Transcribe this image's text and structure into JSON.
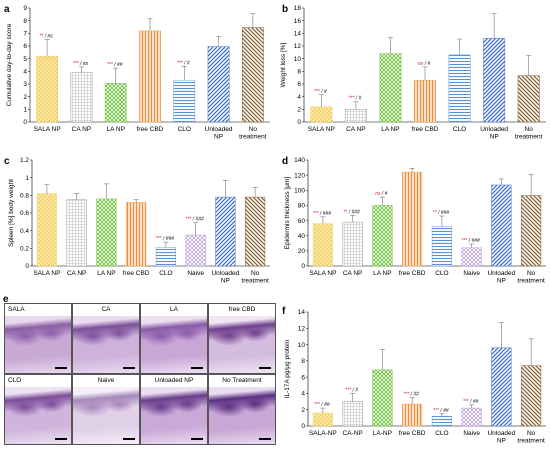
{
  "colors": {
    "sala": "#f3d36a",
    "ca": "#9a9a9a",
    "la": "#7cc24a",
    "cbd": "#f2a55e",
    "clo": "#6f9ad6",
    "naive": "#b59ad6",
    "unloaded": "#4a72b8",
    "notreat": "#8b5a2b",
    "sig_red": "#d62728",
    "sig_black": "#000000"
  },
  "chart_data": [
    {
      "panel": "a",
      "type": "bar",
      "ylabel": "Cumulative day-to-day score",
      "ylim": [
        0,
        9
      ],
      "yticks": [
        "0",
        "1",
        "2",
        "3",
        "4",
        "5",
        "6",
        "7",
        "8",
        "9"
      ],
      "categories": [
        "SALA NP",
        "CA NP",
        "LA NP",
        "free CBD",
        "CLO",
        "Unloaded NP",
        "No treatment"
      ],
      "cat_lines": [
        [
          "SALA NP"
        ],
        [
          "CA NP"
        ],
        [
          "LA NP"
        ],
        [
          "free CBD"
        ],
        [
          "CLO"
        ],
        [
          "Unloaded",
          "NP"
        ],
        [
          "No",
          "treatment"
        ]
      ],
      "values": [
        5.2,
        3.9,
        3.05,
        7.2,
        3.3,
        5.95,
        7.45
      ],
      "errors": [
        1.3,
        0.45,
        1.2,
        0.95,
        1.1,
        0.8,
        1.1
      ],
      "fills": [
        "sala",
        "ca",
        "la",
        "cbd",
        "clo",
        "unloaded",
        "notreat"
      ],
      "sig_red": [
        "**",
        "***",
        "***",
        "",
        "***",
        "",
        ""
      ],
      "sig_black": [
        "/ ns",
        "/ ns",
        "/ ##",
        "",
        "/ #",
        "",
        ""
      ]
    },
    {
      "panel": "b",
      "type": "bar",
      "ylabel": "Weight loss [%]",
      "ylim": [
        0,
        18
      ],
      "yticks": [
        "0",
        "2",
        "4",
        "6",
        "8",
        "10",
        "12",
        "14",
        "16",
        "18"
      ],
      "categories": [
        "SALA NP",
        "CA NP",
        "LA NP",
        "free CBD",
        "CLO",
        "Unloaded NP",
        "No treatment"
      ],
      "cat_lines": [
        [
          "SALA NP"
        ],
        [
          "CA NP"
        ],
        [
          "LA NP"
        ],
        [
          "free CBD"
        ],
        [
          "CLO"
        ],
        [
          "Unloaded",
          "NP"
        ],
        [
          "No",
          "treatment"
        ]
      ],
      "values": [
        2.4,
        2.0,
        10.8,
        6.6,
        10.6,
        13.2,
        7.3
      ],
      "errors": [
        1.9,
        1.2,
        2.5,
        2.1,
        2.5,
        3.9,
        3.2
      ],
      "fills": [
        "sala",
        "ca",
        "la",
        "cbd",
        "clo",
        "unloaded",
        "notreat"
      ],
      "sig_red": [
        "***",
        "***",
        "",
        "ns",
        "",
        "",
        ""
      ],
      "sig_black": [
        "/ #",
        "/ #",
        "",
        "/ #",
        "",
        "",
        ""
      ]
    },
    {
      "panel": "c",
      "type": "bar",
      "ylabel": "Spleen [%] body weight",
      "ylim": [
        0,
        1.2
      ],
      "yticks": [
        "0",
        "0.2",
        "0.4",
        "0.6",
        "0.8",
        "1",
        "1.2"
      ],
      "categories": [
        "SALA NP",
        "CA NP",
        "LA NP",
        "free CBD",
        "CLO",
        "Naive",
        "Unloaded NP",
        "No treatment"
      ],
      "cat_lines": [
        [
          "SALA NP"
        ],
        [
          "CA NP"
        ],
        [
          "LA NP"
        ],
        [
          "free CBD"
        ],
        [
          "CLO"
        ],
        [
          "Naive"
        ],
        [
          "Unloaded",
          "NP"
        ],
        [
          "No",
          "treatment"
        ]
      ],
      "values": [
        0.82,
        0.75,
        0.76,
        0.72,
        0.21,
        0.35,
        0.78,
        0.78
      ],
      "errors": [
        0.1,
        0.07,
        0.17,
        0.03,
        0.06,
        0.14,
        0.19,
        0.11
      ],
      "fills": [
        "sala",
        "ca",
        "la",
        "cbd",
        "clo",
        "naive",
        "unloaded",
        "notreat"
      ],
      "sig_red": [
        "",
        "",
        "",
        "",
        "***",
        "***",
        "",
        ""
      ],
      "sig_black": [
        "",
        "",
        "",
        "",
        "/ ###",
        "/ ###",
        "",
        ""
      ]
    },
    {
      "panel": "d",
      "type": "bar",
      "ylabel": "Epidermis thickness [μm]",
      "ylim": [
        0,
        140
      ],
      "yticks": [
        "0",
        "20",
        "40",
        "60",
        "80",
        "100",
        "120",
        "140"
      ],
      "categories": [
        "SALA NP",
        "CA NP",
        "LA NP",
        "free CBD",
        "CLO",
        "Naive",
        "Unloaded NP",
        "No treatment"
      ],
      "cat_lines": [
        [
          "SALA NP"
        ],
        [
          "CA NP"
        ],
        [
          "LA NP"
        ],
        [
          "free CBD"
        ],
        [
          "CLO"
        ],
        [
          "Naive"
        ],
        [
          "Unloaded",
          "NP"
        ],
        [
          "No",
          "treatment"
        ]
      ],
      "values": [
        56,
        58,
        80,
        124,
        52,
        24,
        107,
        93
      ],
      "errors": [
        9,
        9,
        11,
        5,
        14,
        5,
        8,
        28
      ],
      "fills": [
        "sala",
        "ca",
        "la",
        "cbd",
        "clo",
        "naive",
        "unloaded",
        "notreat"
      ],
      "sig_red": [
        "***",
        "**",
        "ns",
        "",
        "**",
        "***",
        "",
        ""
      ],
      "sig_black": [
        "/ ###",
        "/ ###",
        "/ #",
        "",
        "/ ###",
        "/ ###",
        "",
        ""
      ]
    },
    {
      "panel": "f",
      "type": "bar",
      "ylabel": "IL-17A pg/μg protein",
      "ylim": [
        0,
        14
      ],
      "yticks": [
        "0",
        "2",
        "4",
        "6",
        "8",
        "10",
        "12",
        "14"
      ],
      "categories": [
        "SALA-NP",
        "CA-NP",
        "LA-NP",
        "free CBD",
        "CLO",
        "Naive",
        "Unloaded NP",
        "No treatment"
      ],
      "cat_lines": [
        [
          "SALA-NP"
        ],
        [
          "CA-NP"
        ],
        [
          "LA-NP"
        ],
        [
          "free CBD"
        ],
        [
          "CLO"
        ],
        [
          "Naive"
        ],
        [
          "Unloaded",
          "NP"
        ],
        [
          "No",
          "treatment"
        ]
      ],
      "values": [
        1.6,
        3.0,
        6.9,
        2.7,
        1.2,
        2.2,
        9.6,
        7.4
      ],
      "errors": [
        0.6,
        1.0,
        2.5,
        0.8,
        0.3,
        0.4,
        3.1,
        3.3
      ],
      "fills": [
        "sala",
        "ca",
        "la",
        "cbd",
        "clo",
        "naive",
        "unloaded",
        "notreat"
      ],
      "sig_red": [
        "***",
        "***",
        "",
        "***",
        "***",
        "***",
        "",
        ""
      ],
      "sig_black": [
        "/ ##",
        "/ #",
        "",
        "/ ##",
        "/ ##",
        "/ ##",
        "",
        ""
      ]
    }
  ],
  "histology": {
    "panel": "e",
    "cells": [
      {
        "label": "SALA",
        "align": "left"
      },
      {
        "label": "CA",
        "align": "center"
      },
      {
        "label": "LA",
        "align": "center"
      },
      {
        "label": "free CBD",
        "align": "center"
      },
      {
        "label": "CLO",
        "align": "left"
      },
      {
        "label": "Naive",
        "align": "center"
      },
      {
        "label": "Unloaded NP",
        "align": "center"
      },
      {
        "label": "No Treatment",
        "align": "center"
      }
    ]
  }
}
